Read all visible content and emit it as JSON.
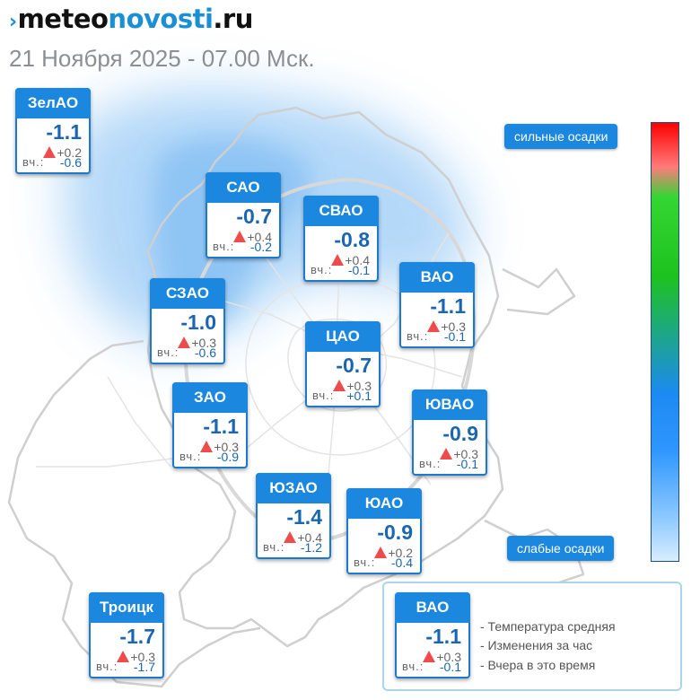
{
  "header": {
    "logo_meteo": "meteo",
    "logo_novosti": "novosti",
    "logo_ru": ".ru",
    "subtitle": "21 Ноября 2025 - 07.00 Мск."
  },
  "districts": [
    {
      "name": "ЗелАО",
      "temp": "-1.1",
      "change": "+0.2",
      "yesterday_label": "вч.:",
      "yesterday": "-0.6"
    },
    {
      "name": "САО",
      "temp": "-0.7",
      "change": "+0.4",
      "yesterday_label": "вч.:",
      "yesterday": "-0.2"
    },
    {
      "name": "СВАО",
      "temp": "-0.8",
      "change": "+0.4",
      "yesterday_label": "вч.:",
      "yesterday": "-0.1"
    },
    {
      "name": "ВАО",
      "temp": "-1.1",
      "change": "+0.3",
      "yesterday_label": "вч.:",
      "yesterday": "-0.1"
    },
    {
      "name": "СЗАО",
      "temp": "-1.0",
      "change": "+0.3",
      "yesterday_label": "вч.:",
      "yesterday": "-0.6"
    },
    {
      "name": "ЦАО",
      "temp": "-0.7",
      "change": "+0.3",
      "yesterday_label": "вч.:",
      "yesterday": "+0.1"
    },
    {
      "name": "ЗАО",
      "temp": "-1.1",
      "change": "+0.3",
      "yesterday_label": "вч.:",
      "yesterday": "-0.9"
    },
    {
      "name": "ЮВАО",
      "temp": "-0.9",
      "change": "+0.3",
      "yesterday_label": "вч.:",
      "yesterday": "-0.1"
    },
    {
      "name": "ЮЗАО",
      "temp": "-1.4",
      "change": "+0.4",
      "yesterday_label": "вч.:",
      "yesterday": "-1.2"
    },
    {
      "name": "ЮАО",
      "temp": "-0.9",
      "change": "+0.2",
      "yesterday_label": "вч.:",
      "yesterday": "-0.4"
    },
    {
      "name": "Троицк",
      "temp": "-1.7",
      "change": "+0.3",
      "yesterday_label": "вч.:",
      "yesterday": "-1.7"
    }
  ],
  "scale": {
    "top_label": "сильные осадки",
    "bottom_label": "слабые осадки",
    "gradient_colors": [
      "#ff0000",
      "#ff7a7a",
      "#33d633",
      "#1ec21e",
      "#1c8af2",
      "#2f97ff",
      "#8cc8ff",
      "#d8edff"
    ]
  },
  "legend": {
    "sample": {
      "name": "ВАО",
      "temp": "-1.1",
      "change": "+0.3",
      "yesterday_label": "вч.:",
      "yesterday": "-0.1"
    },
    "lines": [
      "- Температура средняя",
      "- Изменения за час",
      "- Вчера в это время"
    ]
  },
  "colors": {
    "accent": "#1b87de",
    "temperature_text": "#1a66b0",
    "rise_arrow": "#ee4c4c",
    "precip_area": "#3a98ec"
  }
}
